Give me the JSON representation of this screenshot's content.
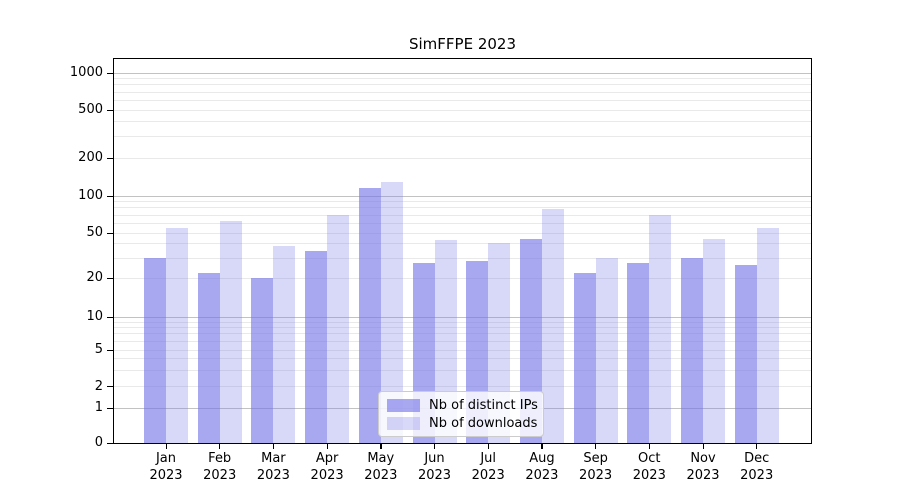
{
  "title": "SimFFPE 2023",
  "legend": {
    "position": "lower center",
    "items": [
      {
        "label": "Nb of distinct IPs",
        "color": "rgba(115,115,232,0.62)"
      },
      {
        "label": "Nb of downloads",
        "color": "rgba(125,125,232,0.30)"
      }
    ]
  },
  "axes": {
    "ytick_labels": [
      "0",
      "1",
      "2",
      "5",
      "10",
      "20",
      "50",
      "100",
      "200",
      "500",
      "1000"
    ],
    "grid_major_color": "#c2c2c2",
    "grid_minor_color": "#e9e9e9",
    "spine_color": "#000000"
  },
  "chart_data": {
    "type": "bar",
    "title": "SimFFPE 2023",
    "categories": [
      "Jan 2023",
      "Feb 2023",
      "Mar 2023",
      "Apr 2023",
      "May 2023",
      "Jun 2023",
      "Jul 2023",
      "Aug 2023",
      "Sep 2023",
      "Oct 2023",
      "Nov 2023",
      "Dec 2023"
    ],
    "series": [
      {
        "name": "Nb of distinct IPs",
        "color": "rgba(115,115,232,0.62)",
        "values": [
          30,
          22,
          20,
          35,
          115,
          27,
          28,
          44,
          22,
          27,
          30,
          26
        ]
      },
      {
        "name": "Nb of downloads",
        "color": "rgba(125,125,232,0.30)",
        "values": [
          55,
          63,
          38,
          70,
          130,
          43,
          41,
          78,
          30,
          70,
          44,
          55
        ]
      }
    ],
    "xlabel": "",
    "ylabel": "",
    "yscale": "symlog",
    "yticks": [
      0,
      1,
      2,
      5,
      10,
      20,
      50,
      100,
      200,
      500,
      1000
    ],
    "ylim": [
      0,
      1300
    ],
    "grid": true,
    "legend_position": "lower center"
  }
}
